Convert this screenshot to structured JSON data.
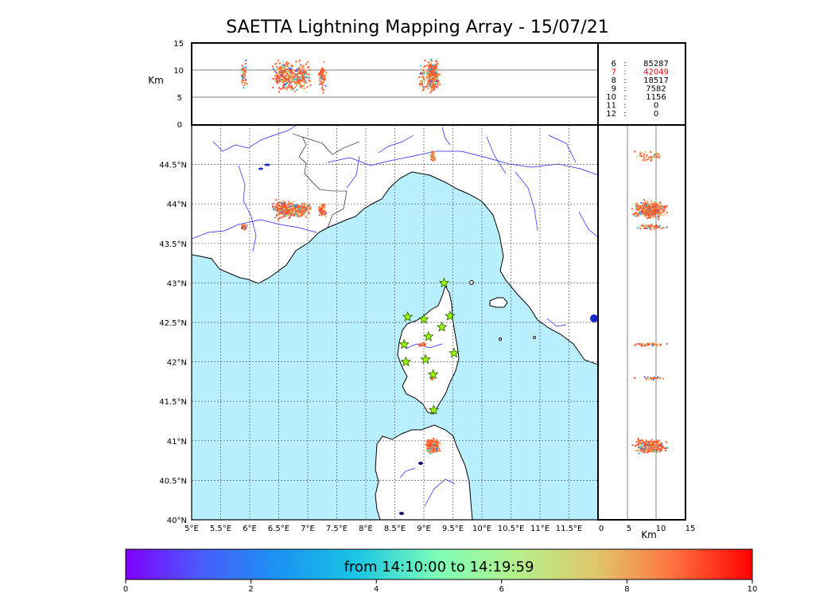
{
  "title": "SAETTA Lightning Mapping Array - 15/07/21",
  "colors": {
    "sea": "#b9f0ff",
    "land": "#ffffff",
    "coast": "#000000",
    "river": "#2020ff",
    "grid": "#555555",
    "station_fill": "#9aff00",
    "station_stroke": "#2d5a00",
    "highlight": "#ff0000"
  },
  "map": {
    "lon_labels": [
      "5°E",
      "5.5°E",
      "6°E",
      "6.5°E",
      "7°E",
      "7.5°E",
      "8°E",
      "8.5°E",
      "9°E",
      "9.5°E",
      "10°E",
      "10.5°E",
      "11°E",
      "11.5°E"
    ],
    "lat_labels": [
      "40°N",
      "40.5°N",
      "41°N",
      "41.5°N",
      "42°N",
      "42.5°N",
      "43°N",
      "43.5°N",
      "44°N",
      "44.5°N"
    ]
  },
  "altitude_panel": {
    "axis_label": "Km",
    "ticks": [
      "0",
      "5",
      "10",
      "15"
    ]
  },
  "side_panel": {
    "axis_label": "Km",
    "ticks": [
      "0",
      "5",
      "10",
      "15"
    ]
  },
  "counts": [
    {
      "level": "6",
      "sep": ":",
      "value": "85287",
      "highlight": false
    },
    {
      "level": "7",
      "sep": ":",
      "value": "42049",
      "highlight": true
    },
    {
      "level": "8",
      "sep": ":",
      "value": "18517",
      "highlight": false
    },
    {
      "level": "9",
      "sep": ":",
      "value": "7582",
      "highlight": false
    },
    {
      "level": "10",
      "sep": ":",
      "value": "1156",
      "highlight": false
    },
    {
      "level": "11",
      "sep": ":",
      "value": "0",
      "highlight": false
    },
    {
      "level": "12",
      "sep": ":",
      "value": "0",
      "highlight": false
    }
  ],
  "colorbar": {
    "label": "from 14:10:00 to 14:19:59",
    "ticks": [
      "0",
      "2",
      "4",
      "6",
      "8",
      "10"
    ]
  },
  "stations": [
    {
      "lon": 9.35,
      "lat": 43.0
    },
    {
      "lon": 8.72,
      "lat": 42.57
    },
    {
      "lon": 9.0,
      "lat": 42.54
    },
    {
      "lon": 9.45,
      "lat": 42.58
    },
    {
      "lon": 9.31,
      "lat": 42.44
    },
    {
      "lon": 9.08,
      "lat": 42.32
    },
    {
      "lon": 8.66,
      "lat": 42.22
    },
    {
      "lon": 9.52,
      "lat": 42.11
    },
    {
      "lon": 8.69,
      "lat": 42.0
    },
    {
      "lon": 9.03,
      "lat": 42.03
    },
    {
      "lon": 9.16,
      "lat": 41.84
    },
    {
      "lon": 9.17,
      "lat": 41.39
    }
  ],
  "lightning_clusters": [
    {
      "lon": 6.6,
      "lat": 43.93,
      "dlon": 0.28,
      "dlat": 0.14,
      "n": 260
    },
    {
      "lon": 6.9,
      "lat": 43.92,
      "dlon": 0.2,
      "dlat": 0.12,
      "n": 160
    },
    {
      "lon": 7.25,
      "lat": 43.92,
      "dlon": 0.1,
      "dlat": 0.1,
      "n": 70
    },
    {
      "lon": 5.9,
      "lat": 43.71,
      "dlon": 0.08,
      "dlat": 0.05,
      "n": 45
    },
    {
      "lon": 9.16,
      "lat": 44.6,
      "dlon": 0.05,
      "dlat": 0.08,
      "n": 45
    },
    {
      "lon": 9.15,
      "lat": 40.93,
      "dlon": 0.14,
      "dlat": 0.12,
      "n": 320
    },
    {
      "lon": 8.98,
      "lat": 42.22,
      "dlon": 0.08,
      "dlat": 0.03,
      "n": 40
    },
    {
      "lon": 9.14,
      "lat": 41.79,
      "dlon": 0.04,
      "dlat": 0.03,
      "n": 20
    }
  ]
}
